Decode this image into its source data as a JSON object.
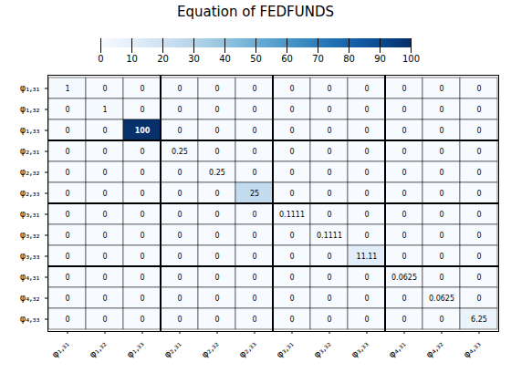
{
  "chart_data": {
    "type": "heatmap",
    "title": "Equation of FEDFUNDS",
    "x": [
      "φ₁,₃₁",
      "φ₁,₃₂",
      "φ₁,₃₃",
      "φ₂,₃₁",
      "φ₂,₃₂",
      "φ₂,₃₃",
      "φ₃,₃₁",
      "φ₃,₃₂",
      "φ₃,₃₃",
      "φ₄,₃₁",
      "φ₄,₃₂",
      "φ₄,₃₃"
    ],
    "y": [
      "φ₁,₃₁",
      "φ₁,₃₂",
      "φ₁,₃₃",
      "φ₂,₃₁",
      "φ₂,₃₂",
      "φ₂,₃₃",
      "φ₃,₃₁",
      "φ₃,₃₂",
      "φ₃,₃₃",
      "φ₄,₃₁",
      "φ₄,₃₂",
      "φ₄,₃₃"
    ],
    "values": [
      [
        1,
        0,
        0,
        0,
        0,
        0,
        0,
        0,
        0,
        0,
        0,
        0
      ],
      [
        0,
        1,
        0,
        0,
        0,
        0,
        0,
        0,
        0,
        0,
        0,
        0
      ],
      [
        0,
        0,
        100,
        0,
        0,
        0,
        0,
        0,
        0,
        0,
        0,
        0
      ],
      [
        0,
        0,
        0,
        0.25,
        0,
        0,
        0,
        0,
        0,
        0,
        0,
        0
      ],
      [
        0,
        0,
        0,
        0,
        0.25,
        0,
        0,
        0,
        0,
        0,
        0,
        0
      ],
      [
        0,
        0,
        0,
        0,
        0,
        25,
        0,
        0,
        0,
        0,
        0,
        0
      ],
      [
        0,
        0,
        0,
        0,
        0,
        0,
        0.1111,
        0,
        0,
        0,
        0,
        0
      ],
      [
        0,
        0,
        0,
        0,
        0,
        0,
        0,
        0.1111,
        0,
        0,
        0,
        0
      ],
      [
        0,
        0,
        0,
        0,
        0,
        0,
        0,
        0,
        11.11,
        0,
        0,
        0
      ],
      [
        0,
        0,
        0,
        0,
        0,
        0,
        0,
        0,
        0,
        0.0625,
        0,
        0
      ],
      [
        0,
        0,
        0,
        0,
        0,
        0,
        0,
        0,
        0,
        0,
        0.0625,
        0
      ],
      [
        0,
        0,
        0,
        0,
        0,
        0,
        0,
        0,
        0,
        0,
        0,
        6.25
      ]
    ],
    "value_labels": [
      [
        "1",
        "0",
        "0",
        "0",
        "0",
        "0",
        "0",
        "0",
        "0",
        "0",
        "0",
        "0"
      ],
      [
        "0",
        "1",
        "0",
        "0",
        "0",
        "0",
        "0",
        "0",
        "0",
        "0",
        "0",
        "0"
      ],
      [
        "0",
        "0",
        "100",
        "0",
        "0",
        "0",
        "0",
        "0",
        "0",
        "0",
        "0",
        "0"
      ],
      [
        "0",
        "0",
        "0",
        "0.25",
        "0",
        "0",
        "0",
        "0",
        "0",
        "0",
        "0",
        "0"
      ],
      [
        "0",
        "0",
        "0",
        "0",
        "0.25",
        "0",
        "0",
        "0",
        "0",
        "0",
        "0",
        "0"
      ],
      [
        "0",
        "0",
        "0",
        "0",
        "0",
        "25",
        "0",
        "0",
        "0",
        "0",
        "0",
        "0"
      ],
      [
        "0",
        "0",
        "0",
        "0",
        "0",
        "0",
        "0.1111",
        "0",
        "0",
        "0",
        "0",
        "0"
      ],
      [
        "0",
        "0",
        "0",
        "0",
        "0",
        "0",
        "0",
        "0.1111",
        "0",
        "0",
        "0",
        "0"
      ],
      [
        "0",
        "0",
        "0",
        "0",
        "0",
        "0",
        "0",
        "0",
        "11.11",
        "0",
        "0",
        "0"
      ],
      [
        "0",
        "0",
        "0",
        "0",
        "0",
        "0",
        "0",
        "0",
        "0",
        "0.0625",
        "0",
        "0"
      ],
      [
        "0",
        "0",
        "0",
        "0",
        "0",
        "0",
        "0",
        "0",
        "0",
        "0",
        "0.0625",
        "0"
      ],
      [
        "0",
        "0",
        "0",
        "0",
        "0",
        "0",
        "0",
        "0",
        "0",
        "0",
        "0",
        "6.25"
      ]
    ],
    "data_labels": true,
    "color": "Blues",
    "colorbar_range": [
      0,
      100
    ],
    "colorbar_ticks": [
      0,
      10,
      20,
      30,
      40,
      50,
      60,
      70,
      80,
      90,
      100
    ]
  }
}
